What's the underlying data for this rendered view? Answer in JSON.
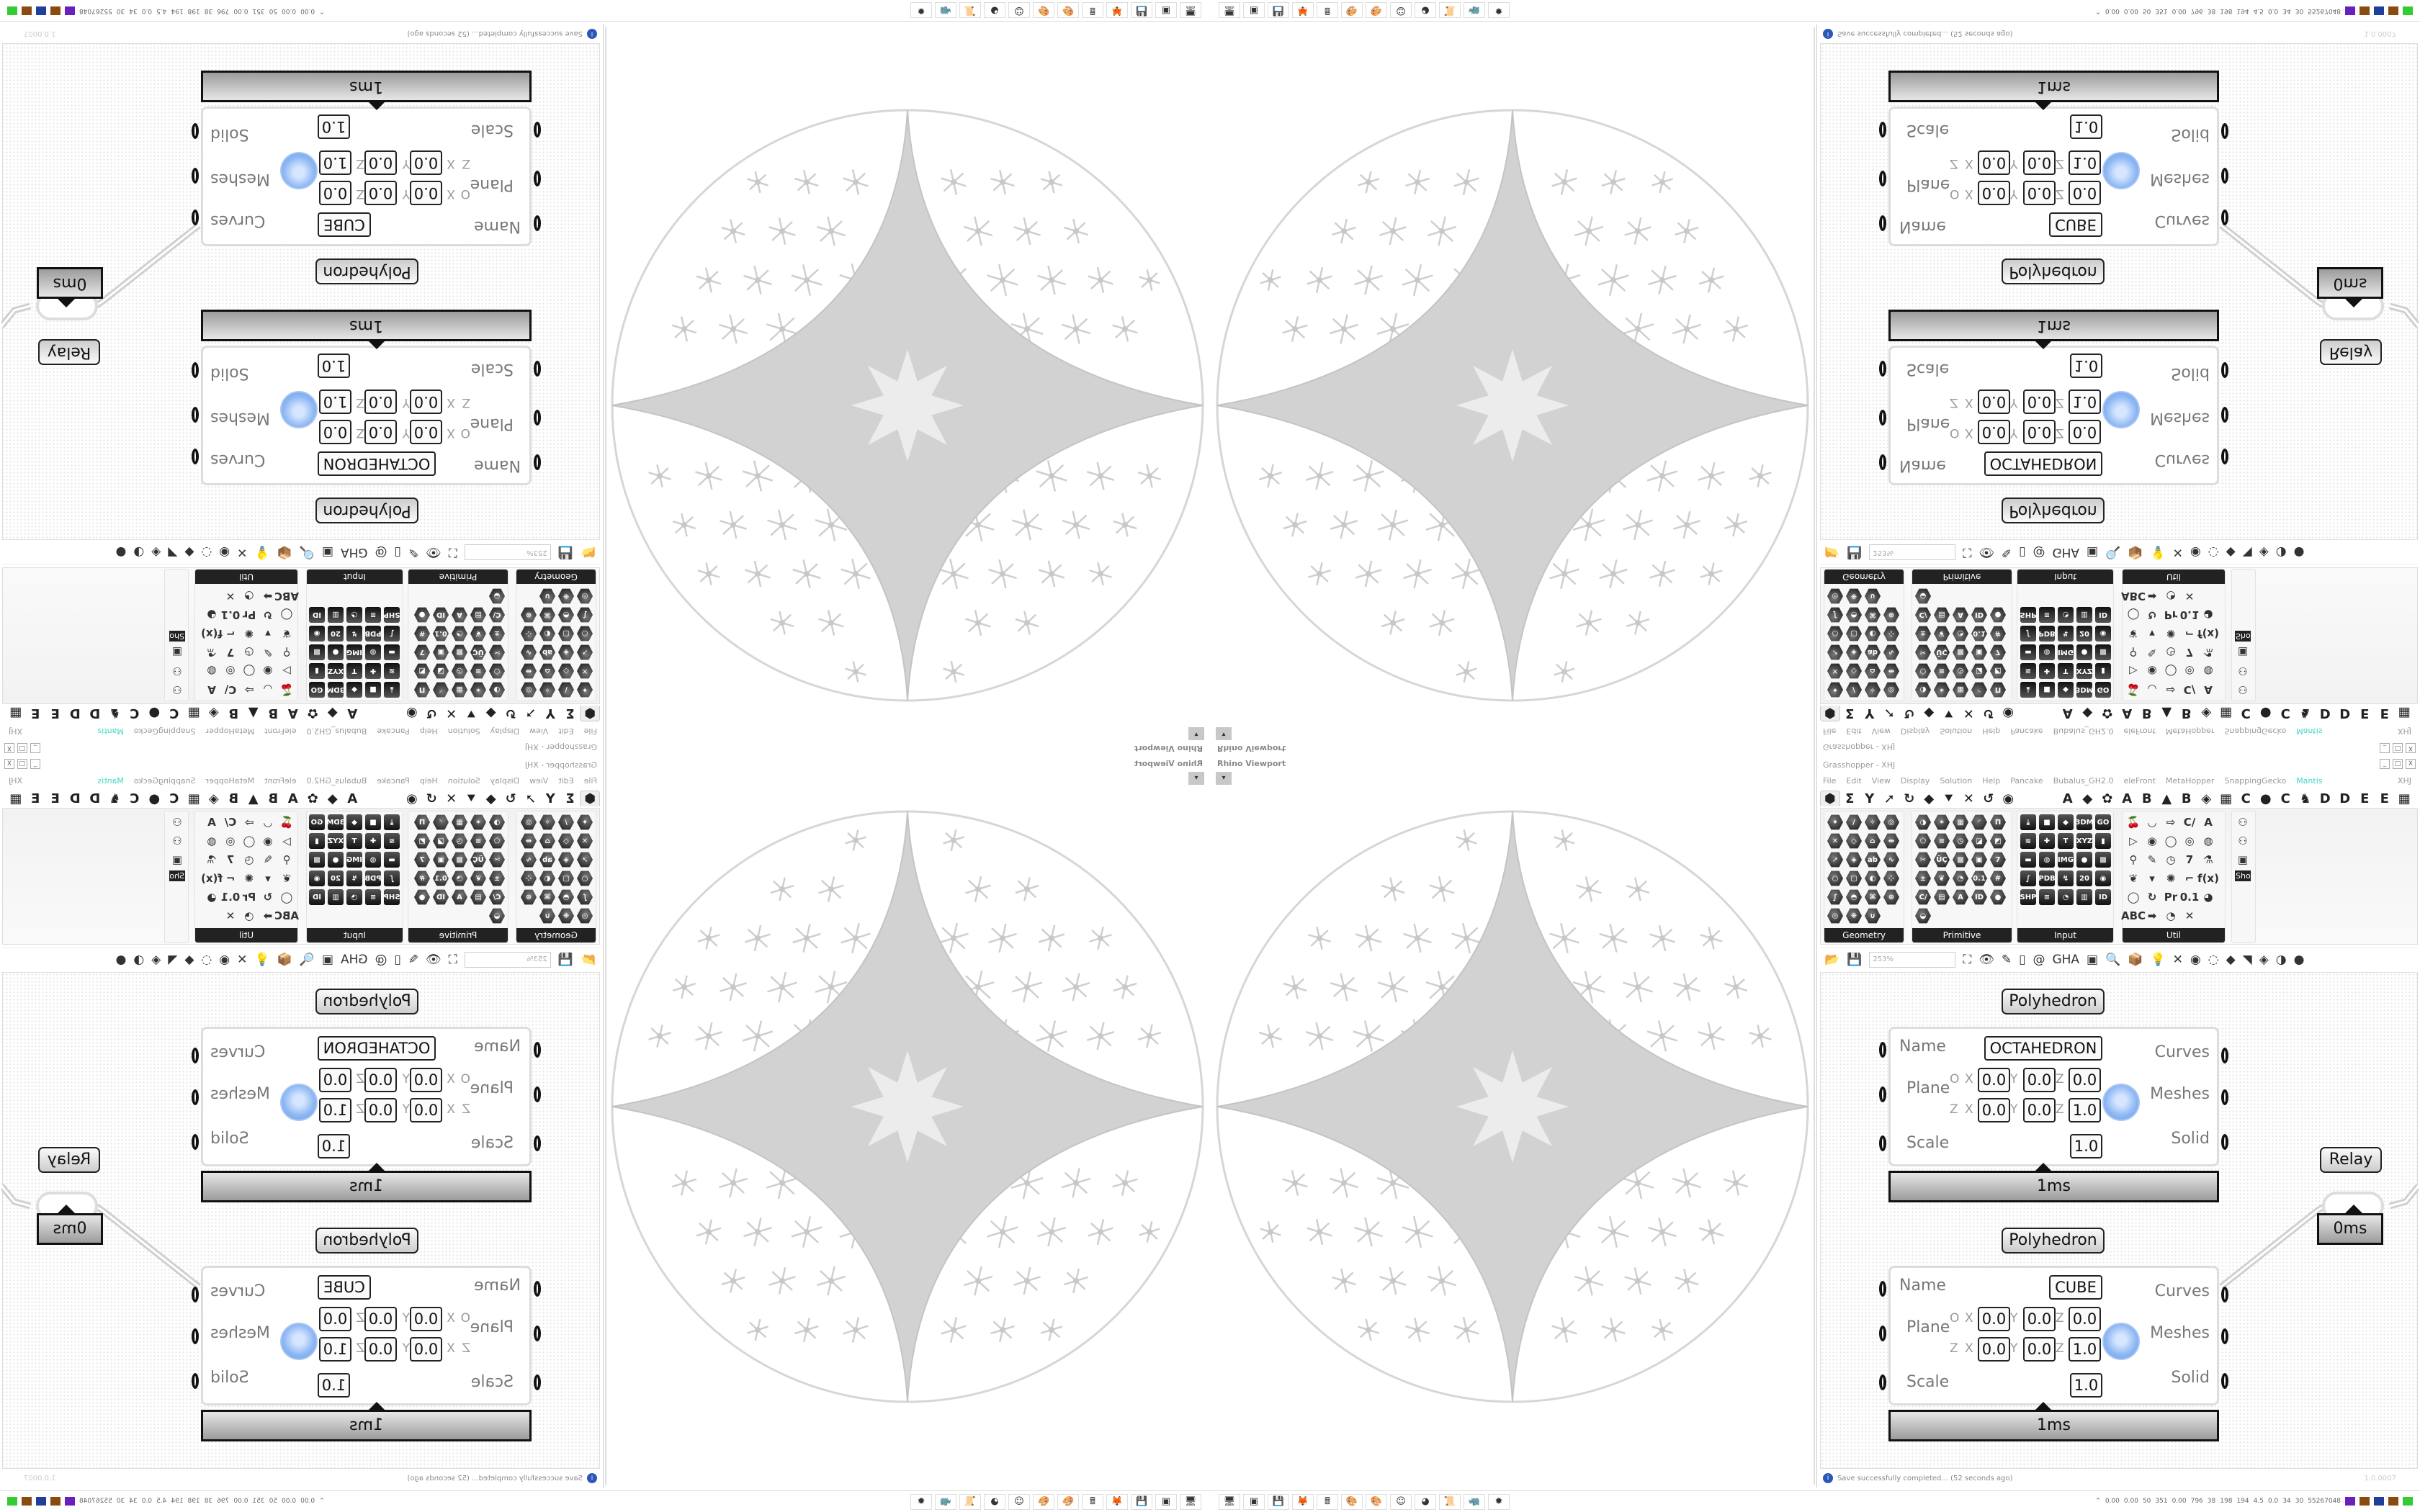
{
  "viewport": {
    "title": "Rhino Viewport",
    "dropdown_icon": "chevron-down-icon"
  },
  "grasshopper": {
    "title": "Grasshopper - XHJ",
    "window_buttons": [
      "_",
      "□",
      "X"
    ],
    "menu": [
      "File",
      "Edit",
      "View",
      "Display",
      "Solution",
      "Help",
      "Pancake",
      "Bubalus_GH2.0",
      "eleFront",
      "MetaHopper",
      "SnappingGecko",
      "Mantis"
    ],
    "menu_accent_item": "Mantis",
    "menu_accent_color": "#3fd6c6",
    "menu_right": "XHJ",
    "tabs": [
      "⬢",
      "Σ",
      "Y",
      "➚",
      "↻",
      "◆",
      "⯆",
      "✕",
      "↺",
      "◉",
      "",
      "",
      "A",
      "◆",
      "✿",
      "A",
      "B",
      "▲",
      "B",
      "◈",
      "▦",
      "C",
      "●",
      "C",
      "♞",
      "D",
      "D",
      "E",
      "E",
      "▦"
    ],
    "palettes": [
      {
        "label": "Geometry",
        "style": "hex",
        "cols": 4,
        "icons": [
          "✦",
          "∕",
          "✧",
          "◎",
          "✕",
          "◇",
          "⌂",
          "⇹",
          "➚",
          "◈",
          "ab",
          "∿",
          "○",
          "▢",
          "◐",
          "⁘",
          "∫",
          "◓",
          "⌘",
          "⊛",
          "◎",
          "❋",
          "∪"
        ]
      },
      {
        "label": "Primitive",
        "style": "hex",
        "cols": 5,
        "icons": [
          "◑",
          "✶",
          "▦",
          "◜",
          "Π",
          "⬠",
          "≡",
          "◷",
          "◪",
          "◩",
          "✂",
          "ÜÇ",
          "▩",
          "▣",
          "7",
          "±",
          "❦",
          "◔",
          "0.1",
          "#",
          "C/",
          "▤",
          "A",
          "ID",
          "●",
          "◒"
        ]
      },
      {
        "label": "Input",
        "style": "sq",
        "cols": 5,
        "icons": [
          "⤓",
          "■",
          "◆",
          "3DM",
          "GO",
          "≋",
          "✚",
          "T",
          "XYZ",
          "▮",
          "▬",
          "◍",
          "IMG",
          "●",
          "▩",
          "∫",
          "PDB",
          "↯",
          "20",
          "◉",
          "SHP",
          "≡",
          "◔",
          "▥",
          "ID"
        ]
      },
      {
        "label": "Util",
        "style": "ut",
        "cols": 5,
        "icons": [
          "🍒",
          "◡",
          "⇨",
          "C/",
          "A",
          "▷",
          "◉",
          "◯",
          "◎",
          "◍",
          "⚲",
          "✎",
          "◷",
          "7",
          "⚗",
          "❦",
          "▾",
          "✺",
          "⌐",
          "f(x)",
          "◯",
          "↻",
          "Pr",
          "0.1",
          "◕",
          "ABC",
          "➡",
          "◔",
          "✕"
        ]
      },
      {
        "label": "Sho...",
        "style": "ut",
        "cols": 1,
        "icons": [
          "⚇",
          "⚇",
          "▣"
        ]
      }
    ],
    "toolbar": {
      "zoom": "253%",
      "icons": [
        "📂",
        "💾",
        "⛶",
        "👁",
        "✎",
        "▯",
        "@",
        "GHA",
        "▣",
        "🔍",
        "📦",
        "💡",
        "✕",
        "◉",
        "◌",
        "◆",
        "◥",
        "◈",
        "◑",
        "●"
      ]
    },
    "components": [
      {
        "title": "Polyhedron",
        "name": "OCTAHEDRON",
        "origin": {
          "x": "0.0",
          "y": "0.0",
          "z": "0.0"
        },
        "zaxis": {
          "x": "0.0",
          "y": "0.0",
          "z": "1.0"
        },
        "scale": "1.0",
        "time": "1ms"
      },
      {
        "title": "Polyhedron",
        "name": "CUBE",
        "origin": {
          "x": "0.0",
          "y": "0.0",
          "z": "0.0"
        },
        "zaxis": {
          "x": "0.0",
          "y": "0.0",
          "z": "1.0"
        },
        "scale": "1.0",
        "time": "1ms"
      }
    ],
    "inputs": [
      "Name",
      "Plane",
      "Scale"
    ],
    "outputs": [
      "Curves",
      "Meshes",
      "Solid"
    ],
    "plane_row_labels": {
      "origin": "O",
      "zaxis": "Z",
      "x": "X",
      "y": "Y",
      "z": "Z"
    },
    "relay": {
      "title": "Relay",
      "time": "0ms"
    },
    "status": {
      "message": "Save successfully completed... (52 seconds ago)",
      "version": "1.0.0007"
    }
  },
  "taskbar": {
    "icons": [
      "monitor-icon",
      "terminal-icon",
      "floppy-64-icon",
      "firefox-icon",
      "calculator-icon",
      "paint-icon",
      "paint-icon",
      "chat-icon",
      "blender-icon",
      "scroll-icon",
      "rhino-icon",
      "bug-icon"
    ],
    "glyphs": [
      "🖥",
      "▣",
      "💾",
      "🦊",
      "🖩",
      "🎨",
      "🎨",
      "☺",
      "◕",
      "📜",
      "🦏",
      "✹"
    ],
    "tray": [
      "0.00",
      "0.00",
      "50",
      "351",
      "0.00",
      "796",
      "38",
      "198",
      "194",
      "4.5",
      "0.0",
      "34",
      "30",
      "55267048"
    ],
    "tray_colors": [
      "#6a1fbf",
      "#8a4a10",
      "#1f3f9a",
      "#8a4a10",
      "#3c3"
    ]
  }
}
